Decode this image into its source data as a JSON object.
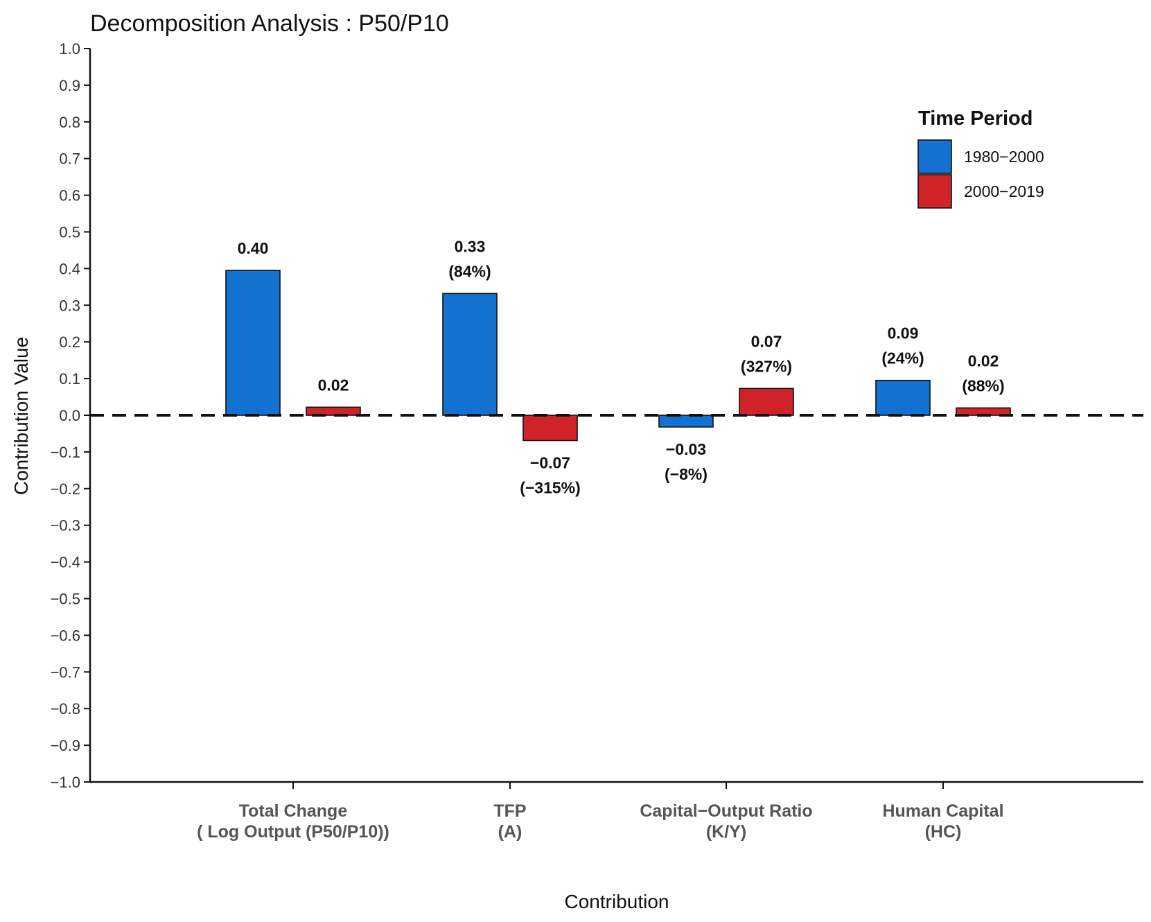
{
  "chart_data": {
    "type": "bar",
    "title": "Decomposition Analysis  : P50/P10",
    "xlabel": "Contribution",
    "ylabel": "Contribution Value",
    "ylim": [
      -1.0,
      1.0
    ],
    "yticks": [
      "−1.0",
      "−0.9",
      "−0.8",
      "−0.7",
      "−0.6",
      "−0.5",
      "−0.4",
      "−0.3",
      "−0.2",
      "−0.1",
      "0.0",
      "0.1",
      "0.2",
      "0.3",
      "0.4",
      "0.5",
      "0.6",
      "0.7",
      "0.8",
      "0.9",
      "1.0"
    ],
    "ytick_values": [
      -1.0,
      -0.9,
      -0.8,
      -0.7,
      -0.6,
      -0.5,
      -0.4,
      -0.3,
      -0.2,
      -0.1,
      0.0,
      0.1,
      0.2,
      0.3,
      0.4,
      0.5,
      0.6,
      0.7,
      0.8,
      0.9,
      1.0
    ],
    "categories": [
      [
        "Total Change",
        "( Log Output (P50/P10))"
      ],
      [
        "TFP",
        "(A)"
      ],
      [
        "Capital−Output Ratio",
        "(K/Y)"
      ],
      [
        "Human Capital",
        "(HC)"
      ]
    ],
    "legend_title": "Time Period",
    "legend_position": "top-right",
    "zero_line": "dashed",
    "series": [
      {
        "name": "1980−2000",
        "color": "#1371d1",
        "values": [
          0.395,
          0.332,
          -0.032,
          0.095
        ],
        "labels": [
          [
            "0.40"
          ],
          [
            "0.33",
            "(84%)"
          ],
          [
            "−0.03",
            "(−8%)"
          ],
          [
            "0.09",
            "(24%)"
          ]
        ]
      },
      {
        "name": "2000−2019",
        "color": "#cf2327",
        "values": [
          0.022,
          -0.069,
          0.073,
          0.02
        ],
        "labels": [
          [
            "0.02"
          ],
          [
            "−0.07",
            "(−315%)"
          ],
          [
            "0.07",
            "(327%)"
          ],
          [
            "0.02",
            "(88%)"
          ]
        ]
      }
    ]
  }
}
